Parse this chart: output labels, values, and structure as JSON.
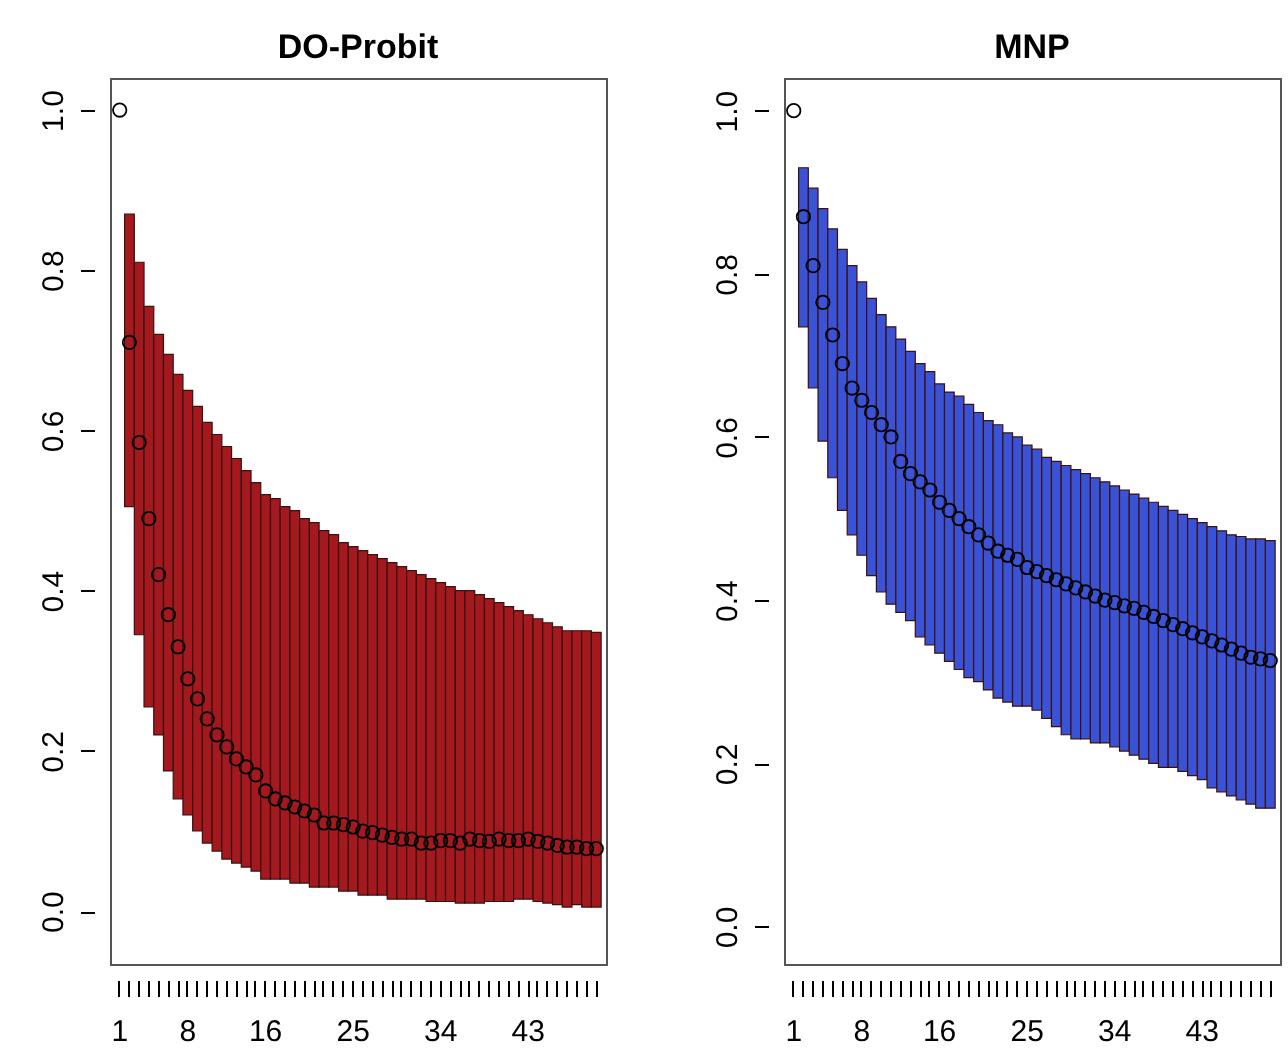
{
  "chart_data": [
    {
      "type": "bar",
      "title": "DO-Probit",
      "categories": [
        "1",
        null,
        null,
        null,
        null,
        null,
        null,
        "8",
        null,
        null,
        null,
        null,
        null,
        null,
        null,
        "16",
        null,
        null,
        null,
        null,
        null,
        null,
        null,
        null,
        "25",
        null,
        null,
        null,
        null,
        null,
        null,
        null,
        null,
        "34",
        null,
        null,
        null,
        null,
        null,
        null,
        null,
        null,
        "43",
        null,
        null,
        null,
        null,
        null,
        null,
        null
      ],
      "series": [
        {
          "type": "bar",
          "color": "#a3191e",
          "base": [
            null,
            0.505,
            0.345,
            0.255,
            0.22,
            0.175,
            0.14,
            0.12,
            0.1,
            0.085,
            0.075,
            0.065,
            0.06,
            0.055,
            0.05,
            0.04,
            0.04,
            0.04,
            0.035,
            0.035,
            0.03,
            0.03,
            0.03,
            0.025,
            0.025,
            0.02,
            0.02,
            0.02,
            0.015,
            0.015,
            0.015,
            0.015,
            0.012,
            0.012,
            0.012,
            0.01,
            0.01,
            0.01,
            0.012,
            0.012,
            0.012,
            0.015,
            0.015,
            0.012,
            0.01,
            0.008,
            0.005,
            0.008,
            0.005,
            0.005
          ],
          "values": [
            null,
            0.365,
            0.465,
            0.5,
            0.5,
            0.52,
            0.53,
            0.53,
            0.53,
            0.525,
            0.52,
            0.515,
            0.505,
            0.495,
            0.485,
            0.48,
            0.475,
            0.465,
            0.465,
            0.455,
            0.455,
            0.445,
            0.44,
            0.435,
            0.43,
            0.43,
            0.425,
            0.42,
            0.42,
            0.415,
            0.41,
            0.405,
            0.403,
            0.398,
            0.393,
            0.39,
            0.39,
            0.385,
            0.378,
            0.373,
            0.368,
            0.36,
            0.355,
            0.353,
            0.35,
            0.347,
            0.345,
            0.342,
            0.345,
            0.343
          ]
        },
        {
          "type": "scatter",
          "color": "#000000",
          "values": [
            1.0,
            0.71,
            0.585,
            0.49,
            0.42,
            0.37,
            0.33,
            0.29,
            0.265,
            0.24,
            0.22,
            0.205,
            0.19,
            0.18,
            0.17,
            0.15,
            0.14,
            0.135,
            0.13,
            0.125,
            0.12,
            0.11,
            0.11,
            0.108,
            0.105,
            0.1,
            0.098,
            0.095,
            0.092,
            0.09,
            0.09,
            0.085,
            0.085,
            0.088,
            0.088,
            0.085,
            0.09,
            0.088,
            0.087,
            0.09,
            0.088,
            0.088,
            0.09,
            0.087,
            0.085,
            0.082,
            0.08,
            0.08,
            0.078,
            0.078
          ]
        }
      ],
      "ylim": [
        -0.066,
        1.04
      ],
      "yticks": [
        {
          "value": 0,
          "label": "0.0"
        },
        {
          "value": 0.2,
          "label": "0.2"
        },
        {
          "value": 0.4,
          "label": "0.4"
        },
        {
          "value": 0.6,
          "label": "0.6"
        },
        {
          "value": 0.8,
          "label": "0.8"
        },
        {
          "value": 1,
          "label": "1.0"
        }
      ],
      "marker": "circle"
    },
    {
      "type": "bar",
      "title": "MNP",
      "categories": [
        "1",
        null,
        null,
        null,
        null,
        null,
        null,
        "8",
        null,
        null,
        null,
        null,
        null,
        null,
        null,
        "16",
        null,
        null,
        null,
        null,
        null,
        null,
        null,
        null,
        "25",
        null,
        null,
        null,
        null,
        null,
        null,
        null,
        null,
        "34",
        null,
        null,
        null,
        null,
        null,
        null,
        null,
        null,
        "43",
        null,
        null,
        null,
        null,
        null,
        null,
        null
      ],
      "series": [
        {
          "type": "bar",
          "color": "#3a52d6",
          "base": [
            null,
            0.735,
            0.66,
            0.595,
            0.55,
            0.51,
            0.48,
            0.455,
            0.43,
            0.41,
            0.395,
            0.385,
            0.375,
            0.355,
            0.345,
            0.335,
            0.325,
            0.315,
            0.305,
            0.3,
            0.29,
            0.28,
            0.275,
            0.27,
            0.27,
            0.265,
            0.255,
            0.245,
            0.235,
            0.23,
            0.23,
            0.225,
            0.225,
            0.22,
            0.215,
            0.21,
            0.205,
            0.2,
            0.195,
            0.195,
            0.19,
            0.185,
            0.18,
            0.17,
            0.165,
            0.16,
            0.155,
            0.15,
            0.145,
            0.145
          ],
          "values": [
            null,
            0.195,
            0.245,
            0.285,
            0.305,
            0.32,
            0.33,
            0.335,
            0.34,
            0.34,
            0.34,
            0.335,
            0.33,
            0.335,
            0.335,
            0.33,
            0.33,
            0.335,
            0.335,
            0.33,
            0.33,
            0.335,
            0.33,
            0.33,
            0.32,
            0.32,
            0.32,
            0.325,
            0.33,
            0.33,
            0.325,
            0.325,
            0.32,
            0.32,
            0.32,
            0.32,
            0.32,
            0.32,
            0.32,
            0.315,
            0.315,
            0.315,
            0.315,
            0.32,
            0.32,
            0.32,
            0.323,
            0.325,
            0.33,
            0.328
          ]
        },
        {
          "type": "scatter",
          "color": "#000000",
          "values": [
            1.0,
            0.87,
            0.81,
            0.765,
            0.725,
            0.69,
            0.66,
            0.645,
            0.63,
            0.615,
            0.6,
            0.57,
            0.555,
            0.545,
            0.535,
            0.52,
            0.51,
            0.5,
            0.49,
            0.48,
            0.47,
            0.46,
            0.455,
            0.45,
            0.44,
            0.435,
            0.43,
            0.425,
            0.42,
            0.415,
            0.41,
            0.405,
            0.4,
            0.397,
            0.393,
            0.39,
            0.385,
            0.38,
            0.375,
            0.37,
            0.365,
            0.36,
            0.355,
            0.35,
            0.345,
            0.34,
            0.335,
            0.33,
            0.328,
            0.326
          ]
        }
      ],
      "ylim": [
        -0.046,
        1.04
      ],
      "yticks": [
        {
          "value": 0,
          "label": "0.0"
        },
        {
          "value": 0.2,
          "label": "0.2"
        },
        {
          "value": 0.4,
          "label": "0.4"
        },
        {
          "value": 0.6,
          "label": "0.6"
        },
        {
          "value": 0.8,
          "label": "0.8"
        },
        {
          "value": 1,
          "label": "1.0"
        }
      ],
      "marker": "circle"
    }
  ]
}
